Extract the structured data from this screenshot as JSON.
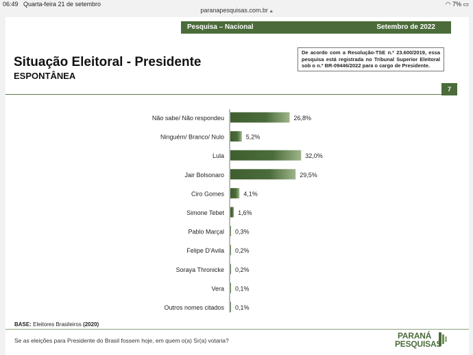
{
  "status": {
    "time": "06:49",
    "date": "Quarta-feira 21 de setembro",
    "battery": "7%"
  },
  "browser": {
    "url": "paranapesquisas.com.br"
  },
  "slide": {
    "band_left": "Pesquisa – Nacional",
    "band_right": "Setembro de 2022",
    "title": "Situação Eleitoral - Presidente",
    "subtitle": "ESPONTÂNEA",
    "legal_text": "De acordo com a Resolução-TSE n.º 23.600/2019, essa pesquisa está registrada no Tribunal Superior Eleitoral sob o n.º BR-09446/2022 para o cargo de Presidente.",
    "page_number": "7",
    "base_label": "BASE:",
    "base_text": "Eleitores Brasileiros",
    "base_year": "(2020)",
    "question": "Se as eleições para Presidente do Brasil fossem hoje, em quem o(a) Sr(a) votaria?",
    "logo_line1": "PARANÁ",
    "logo_line2": "PESQUISAS",
    "colors": {
      "bar": "#4b6c3a",
      "bar_light": "#8fa97c",
      "accent": "#4b6c3a"
    }
  },
  "chart_data": {
    "type": "bar",
    "orientation": "horizontal",
    "title": "Situação Eleitoral - Presidente",
    "categories": [
      "Não sabe/ Não respondeu",
      "Ninguém/ Branco/ Nulo",
      "Lula",
      "Jair Bolsonaro",
      "Ciro Gomes",
      "Simone Tebet",
      "Pablo Marçal",
      "Felipe D'Avila",
      "Soraya Thronicke",
      "Vera",
      "Outros nomes citados"
    ],
    "values": [
      26.8,
      5.2,
      32.0,
      29.5,
      4.1,
      1.6,
      0.3,
      0.2,
      0.2,
      0.1,
      0.1
    ],
    "labels": [
      "26,8%",
      "5,2%",
      "32,0%",
      "29,5%",
      "4,1%",
      "1,6%",
      "0,3%",
      "0,2%",
      "0,2%",
      "0,1%",
      "0,1%"
    ],
    "unit": "%",
    "xlim": [
      0,
      35
    ]
  }
}
